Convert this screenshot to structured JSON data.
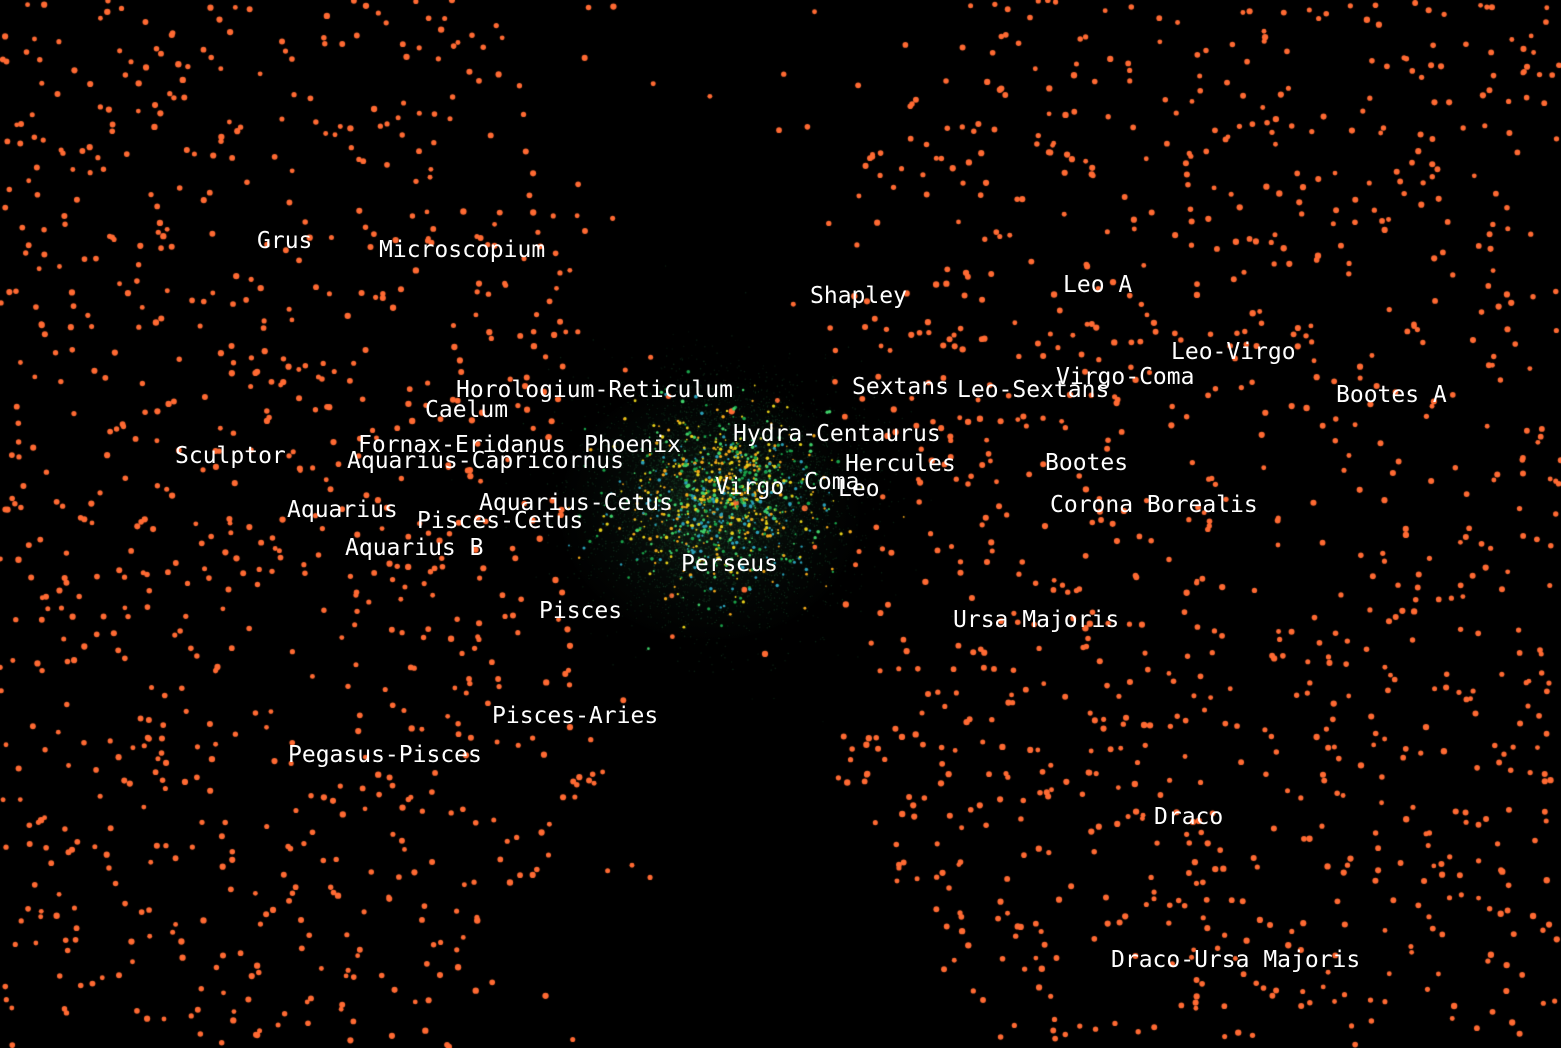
{
  "scene": {
    "background_color": "#000000",
    "halo_point_color": "#ff6a33",
    "core_point_colors": [
      "#1aa34a",
      "#3fd16a",
      "#e8d21a",
      "#f2a81a",
      "#2aa0b8"
    ]
  },
  "labels": {
    "grus": "Grus",
    "microscopium": "Microscopium",
    "shapley": "Shapley",
    "leo_a": "Leo A",
    "leo_virgo": "Leo-Virgo",
    "virgo_coma": "Virgo-Coma",
    "bootes_a": "Bootes A",
    "horologium_reticulum": "Horologium-Reticulum",
    "sextans": "Sextans",
    "leo_sextans": "Leo-Sextans",
    "caelum": "Caelum",
    "hydra_centaurus": "Hydra-Centaurus",
    "fornax_eridanus": "Fornax-Eridanus",
    "phoenix": "Phoenix",
    "sculptor": "Sculptor",
    "aquarius_capricornus": "Aquarius-Capricornus",
    "hercules": "Hercules",
    "bootes": "Bootes",
    "coma": "Coma",
    "virgo": "Virgo",
    "leo": "Leo",
    "aquarius_cetus": "Aquarius-Cetus",
    "corona_borealis": "Corona Borealis",
    "aquarius": "Aquarius",
    "pisces_cetus": "Pisces-Cetus",
    "aquarius_b": "Aquarius B",
    "perseus": "Perseus",
    "pisces": "Pisces",
    "ursa_majoris": "Ursa Majoris",
    "pisces_aries": "Pisces-Aries",
    "pegasus_pisces": "Pegasus-Pisces",
    "draco": "Draco",
    "draco_ursa_majoris": "Draco-Ursa Majoris"
  }
}
